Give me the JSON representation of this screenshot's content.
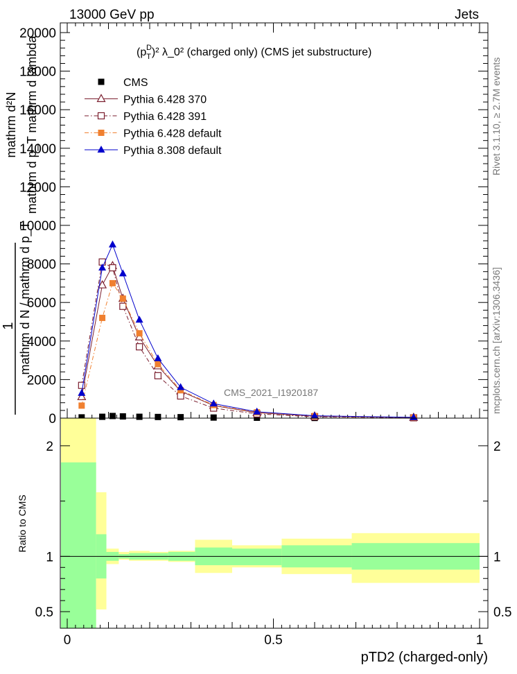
{
  "header": {
    "left": "13000 GeV pp",
    "right": "Jets"
  },
  "side_labels": {
    "rivet": "Rivet 3.1.10, ≥ 2.7M events",
    "mcplots": "mcplots.cern.ch [arXiv:1306.3436]"
  },
  "watermark": "CMS_2021_I1920187",
  "chart_data": [
    {
      "type": "line",
      "title_main": "(p",
      "title_sub": "T",
      "title_sup": "D",
      "title_rest": ")² λ_0² (charged only) (CMS jet substructure)",
      "ylabel_num": "mathrm d²N",
      "ylabel_den": "mathrm d p_T mathrm d lambda",
      "ylabel_prefix": "1",
      "ylabel_prefix_den": "mathrm d N / mathrm d p_T",
      "xlim": [
        0,
        1
      ],
      "ylim": [
        0,
        20000
      ],
      "y_ticks": [
        0,
        2000,
        4000,
        6000,
        8000,
        10000,
        12000,
        14000,
        16000,
        18000,
        20000
      ],
      "y_tick_labels": [
        "0",
        "2000",
        "4000",
        "6000",
        "8000",
        "10000",
        "12000",
        "14000",
        "16000",
        "18000",
        "20000"
      ],
      "x": [
        0.035,
        0.085,
        0.11,
        0.135,
        0.175,
        0.22,
        0.275,
        0.355,
        0.46,
        0.6,
        0.84
      ],
      "series": [
        {
          "name": "CMS",
          "color": "#000000",
          "marker": "square-filled",
          "values": [
            40,
            70,
            110,
            90,
            70,
            60,
            50,
            30,
            20,
            10,
            5
          ]
        },
        {
          "name": "Pythia 6.428 370",
          "color": "#7a1e2e",
          "marker": "triangle-open",
          "dash": "solid",
          "values": [
            1100,
            6900,
            7900,
            6200,
            4200,
            2700,
            1400,
            650,
            280,
            100,
            30
          ]
        },
        {
          "name": "Pythia 6.428 391",
          "color": "#7a1e2e",
          "marker": "square-open",
          "dash": "dashdot",
          "values": [
            1700,
            8100,
            7800,
            5800,
            3700,
            2200,
            1150,
            520,
            220,
            70,
            20
          ]
        },
        {
          "name": "Pythia 6.428 default",
          "color": "#f08030",
          "marker": "square-filled",
          "dash": "dashdot",
          "values": [
            650,
            5200,
            7000,
            6200,
            4400,
            2800,
            1450,
            680,
            300,
            110,
            35
          ]
        },
        {
          "name": "Pythia 8.308 default",
          "color": "#0000cc",
          "marker": "triangle-filled",
          "dash": "solid",
          "values": [
            1300,
            7800,
            9000,
            7500,
            5100,
            3100,
            1600,
            750,
            330,
            120,
            40
          ]
        }
      ]
    },
    {
      "type": "area",
      "ylabel": "Ratio to CMS",
      "xlabel": "pTD2 (charged-only)",
      "xlim": [
        0,
        1
      ],
      "ylim": [
        0.35,
        2.25
      ],
      "x_ticks": [
        0,
        0.5,
        1
      ],
      "x_tick_labels": [
        "0",
        "0.5",
        "1"
      ],
      "y_ticks": [
        0.5,
        1,
        2
      ],
      "y_tick_labels": [
        "0.5",
        "1",
        "2"
      ],
      "bin_edges": [
        0,
        0.07,
        0.095,
        0.125,
        0.15,
        0.2,
        0.245,
        0.31,
        0.4,
        0.52,
        0.69,
        1.0
      ],
      "band_inner_color": "#99ff99",
      "band_outer_color": "#ffff99",
      "band_inner": [
        [
          0.35,
          1.85
        ],
        [
          0.8,
          1.2
        ],
        [
          0.96,
          1.04
        ],
        [
          0.98,
          1.02
        ],
        [
          0.97,
          1.03
        ],
        [
          0.97,
          1.03
        ],
        [
          0.96,
          1.04
        ],
        [
          0.92,
          1.08
        ],
        [
          0.92,
          1.07
        ],
        [
          0.9,
          1.1
        ],
        [
          0.88,
          1.12
        ]
      ],
      "band_outer": [
        [
          0.35,
          2.25
        ],
        [
          0.52,
          1.58
        ],
        [
          0.93,
          1.07
        ],
        [
          0.97,
          1.04
        ],
        [
          0.96,
          1.05
        ],
        [
          0.96,
          1.04
        ],
        [
          0.95,
          1.05
        ],
        [
          0.85,
          1.15
        ],
        [
          0.9,
          1.1
        ],
        [
          0.84,
          1.16
        ],
        [
          0.76,
          1.21
        ]
      ],
      "reference": 1
    }
  ]
}
